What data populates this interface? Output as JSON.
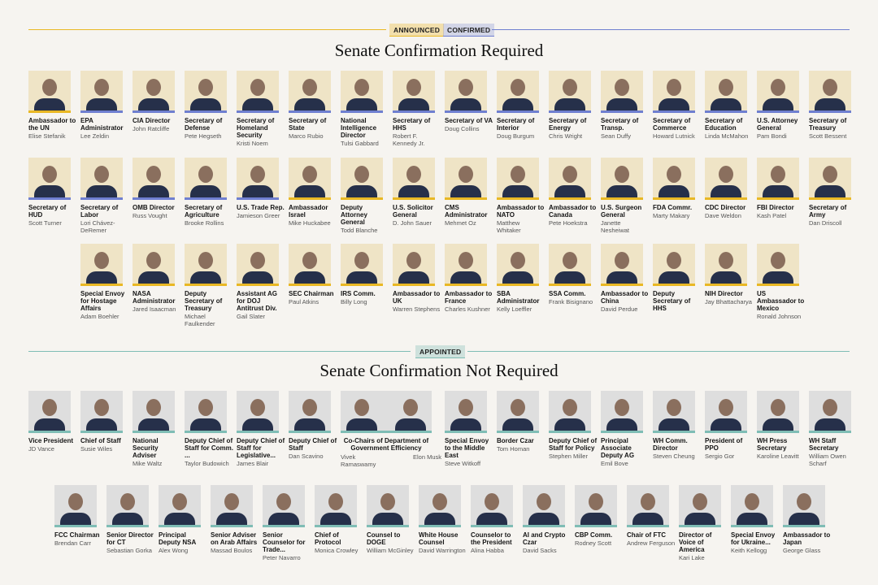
{
  "legend": [
    {
      "label": "ANNOUNCED",
      "color": "#e9b824"
    },
    {
      "label": "CONFIRMED",
      "color": "#6f7fd0"
    }
  ],
  "sections": [
    {
      "title": "Senate Confirmation Required",
      "rows": [
        [
          {
            "role": "Ambassador to the UN",
            "name": "Elise Stefanik",
            "status": "announced"
          },
          {
            "role": "EPA Administrator",
            "name": "Lee Zeldin",
            "status": "confirmed"
          },
          {
            "role": "CIA Director",
            "name": "John Ratcliffe",
            "status": "confirmed"
          },
          {
            "role": "Secretary of Defense",
            "name": "Pete Hegseth",
            "status": "confirmed"
          },
          {
            "role": "Secretary of Homeland Security",
            "name": "Kristi Noem",
            "status": "confirmed"
          },
          {
            "role": "Secretary of State",
            "name": "Marco Rubio",
            "status": "confirmed"
          },
          {
            "role": "National Intelligence Director",
            "name": "Tulsi Gabbard",
            "status": "confirmed"
          },
          {
            "role": "Secretary of HHS",
            "name": "Robert F. Kennedy Jr.",
            "status": "confirmed"
          },
          {
            "role": "Secretary of VA",
            "name": "Doug Collins",
            "status": "confirmed"
          },
          {
            "role": "Secretary of Interior",
            "name": "Doug Burgum",
            "status": "confirmed"
          },
          {
            "role": "Secretary of Energy",
            "name": "Chris Wright",
            "status": "confirmed"
          },
          {
            "role": "Secretary of Transp.",
            "name": "Sean Duffy",
            "status": "confirmed"
          },
          {
            "role": "Secretary of Commerce",
            "name": "Howard Lutnick",
            "status": "confirmed"
          },
          {
            "role": "Secretary of Education",
            "name": "Linda McMahon",
            "status": "confirmed"
          },
          {
            "role": "U.S. Attorney General",
            "name": "Pam Bondi",
            "status": "confirmed"
          },
          {
            "role": "Secretary of Treasury",
            "name": "Scott Bessent",
            "status": "confirmed"
          }
        ],
        [
          {
            "role": "Secretary of HUD",
            "name": "Scott Turner",
            "status": "confirmed"
          },
          {
            "role": "Secretary of Labor",
            "name": "Lori Chávez-DeRemer",
            "status": "confirmed"
          },
          {
            "role": "OMB Director",
            "name": "Russ Vought",
            "status": "confirmed"
          },
          {
            "role": "Secretary of Agriculture",
            "name": "Brooke Rollins",
            "status": "confirmed"
          },
          {
            "role": "U.S. Trade Rep.",
            "name": "Jamieson Greer",
            "status": "confirmed"
          },
          {
            "role": "Ambassador Israel",
            "name": "Mike Huckabee",
            "status": "announced"
          },
          {
            "role": "Deputy Attorney General",
            "name": "Todd Blanche",
            "status": "announced"
          },
          {
            "role": "U.S. Solicitor General",
            "name": "D. John Sauer",
            "status": "announced"
          },
          {
            "role": "CMS Administrator",
            "name": "Mehmet Oz",
            "status": "announced"
          },
          {
            "role": "Ambassador to NATO",
            "name": "Matthew Whitaker",
            "status": "announced"
          },
          {
            "role": "Ambassador to Canada",
            "name": "Pete Hoekstra",
            "status": "announced"
          },
          {
            "role": "U.S. Surgeon General",
            "name": "Janette Nesheiwat",
            "status": "announced"
          },
          {
            "role": "FDA Commr.",
            "name": "Marty Makary",
            "status": "announced"
          },
          {
            "role": "CDC Director",
            "name": "Dave Weldon",
            "status": "announced"
          },
          {
            "role": "FBI Director",
            "name": "Kash Patel",
            "status": "announced"
          },
          {
            "role": "Secretary of Army",
            "name": "Dan Driscoll",
            "status": "announced"
          }
        ],
        [
          {
            "role": "Special Envoy for Hostage Affairs",
            "name": "Adam Boehler",
            "status": "announced"
          },
          {
            "role": "NASA Administrator",
            "name": "Jared Isaacman",
            "status": "announced"
          },
          {
            "role": "Deputy Secretary of Treasury",
            "name": "Michael Faulkender",
            "status": "announced"
          },
          {
            "role": "Assistant AG for DOJ Antitrust Div.",
            "name": "Gail Slater",
            "status": "announced"
          },
          {
            "role": "SEC Chairman",
            "name": "Paul Atkins",
            "status": "announced"
          },
          {
            "role": "IRS Comm.",
            "name": "Billy Long",
            "status": "announced"
          },
          {
            "role": "Ambassador to UK",
            "name": "Warren Stephens",
            "status": "announced"
          },
          {
            "role": "Ambassador to France",
            "name": "Charles Kushner",
            "status": "announced"
          },
          {
            "role": "SBA Administrator",
            "name": "Kelly Loeffler",
            "status": "announced"
          },
          {
            "role": "SSA Comm.",
            "name": "Frank Bisignano",
            "status": "announced"
          },
          {
            "role": "Ambassador to China",
            "name": "David Perdue",
            "status": "announced"
          },
          {
            "role": "Deputy Secretary of HHS",
            "status": "announced"
          },
          {
            "role": "NIH Director",
            "name": "Jay Bhattacharya",
            "status": "announced"
          },
          {
            "role": "US Ambassador to Mexico",
            "name": "Ronald Johnson",
            "status": "announced"
          }
        ]
      ]
    },
    {
      "label": "APPOINTED",
      "color": "#7fbdb5",
      "title": "Senate Confirmation Not Required",
      "rows": [
        [
          {
            "role": "Vice President",
            "name": "JD Vance"
          },
          {
            "role": "Chief of Staff",
            "name": "Susie Wiles"
          },
          {
            "role": "National Security Adviser",
            "name": "Mike Waltz"
          },
          {
            "role": "Deputy Chief of Staff for Comm. ...",
            "name": "Taylor Budowich"
          },
          {
            "role": "Deputy Chief of Staff for Legislative...",
            "name": "James Blair"
          },
          {
            "role": "Deputy Chief of Staff",
            "name": "Dan Scavino"
          },
          {
            "role": "Co-Chairs of Department of Government Efficiency",
            "names": [
              "Vivek Ramaswamy",
              "Elon Musk"
            ]
          },
          {
            "role": "Special Envoy to the Middle East",
            "name": "Steve Witkoff"
          },
          {
            "role": "Border Czar",
            "name": "Tom Homan"
          },
          {
            "role": "Deputy Chief of Staff for Policy",
            "name": "Stephen Miller"
          },
          {
            "role": "Principal Associate Deputy AG",
            "name": "Emil Bove"
          },
          {
            "role": "WH Comm. Director",
            "name": "Steven Cheung"
          },
          {
            "role": "President of PPO",
            "name": "Sergio Gor"
          },
          {
            "role": "WH Press Secretary",
            "name": "Karoline Leavitt"
          },
          {
            "role": "WH Staff Secretary",
            "name": "William Owen Scharf"
          }
        ],
        [
          {
            "role": "FCC Chairman",
            "name": "Brendan Carr"
          },
          {
            "role": "Senior Director for CT",
            "name": "Sebastian Gorka"
          },
          {
            "role": "Principal Deputy NSA",
            "name": "Alex Wong"
          },
          {
            "role": "Senior Adviser on Arab Affairs",
            "name": "Massad Boulos"
          },
          {
            "role": "Senior Counselor for Trade...",
            "name": "Peter Navarro"
          },
          {
            "role": "Chief of Protocol",
            "name": "Monica Crowley"
          },
          {
            "role": "Counsel to DOGE",
            "name": "William McGinley"
          },
          {
            "role": "White House Counsel",
            "name": "David Warrington"
          },
          {
            "role": "Counselor to the President",
            "name": "Alina Habba"
          },
          {
            "role": "AI and Crypto Czar",
            "name": "David Sacks"
          },
          {
            "role": "CBP Comm.",
            "name": "Rodney Scott"
          },
          {
            "role": "Chair of FTC",
            "name": "Andrew Ferguson"
          },
          {
            "role": "Director of Voice of America",
            "name": "Kari Lake"
          },
          {
            "role": "Special Envoy for Ukraine...",
            "name": "Keith Kellogg"
          },
          {
            "role": "Ambassador to Japan",
            "name": "George Glass"
          }
        ]
      ]
    }
  ]
}
